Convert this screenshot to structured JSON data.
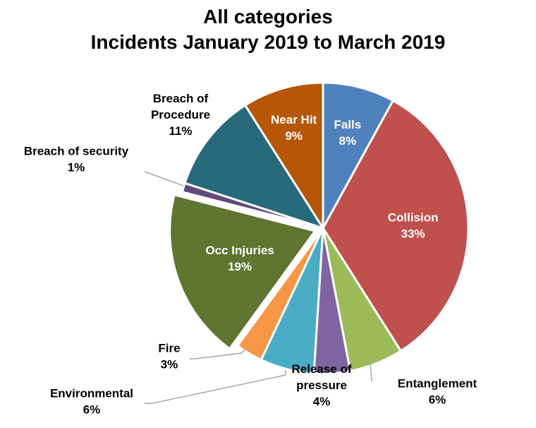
{
  "chart_data": {
    "type": "pie",
    "title": [
      "All categories",
      "Incidents January 2019 to March 2019"
    ],
    "slices": [
      {
        "name": "Falls",
        "label": "Falls",
        "percent_label": "8%",
        "value": 8,
        "color": "#4F81BD",
        "label_color": "#ffffff"
      },
      {
        "name": "Collision",
        "label": "Collision",
        "percent_label": "33%",
        "value": 33,
        "color": "#C0504D",
        "label_color": "#ffffff"
      },
      {
        "name": "Entanglement",
        "label": "Entanglement",
        "percent_label": "6%",
        "value": 6,
        "color": "#9BBB59",
        "label_color": "#000000"
      },
      {
        "name": "Release of pressure",
        "label": "Release of pressure",
        "percent_label": "4%",
        "value": 4,
        "color": "#8064A2",
        "label_color": "#000000"
      },
      {
        "name": "Environmental",
        "label": "Environmental",
        "percent_label": "6%",
        "value": 6,
        "color": "#4BACC6",
        "label_color": "#000000"
      },
      {
        "name": "Fire",
        "label": "Fire",
        "percent_label": "3%",
        "value": 3,
        "color": "#F79646",
        "label_color": "#000000"
      },
      {
        "name": "Occ Injuries",
        "label": "Occ Injuries",
        "percent_label": "19%",
        "value": 19,
        "color": "#5F7530",
        "label_color": "#ffffff"
      },
      {
        "name": "Breach of security",
        "label": "Breach of security",
        "percent_label": "1%",
        "value": 1,
        "color": "#604A7B",
        "label_color": "#000000"
      },
      {
        "name": "Breach of Procedure",
        "label": "Breach of Procedure",
        "percent_label": "11%",
        "value": 11,
        "color": "#276A7C",
        "label_color": "#000000"
      },
      {
        "name": "Near Hit",
        "label": "Near Hit",
        "percent_label": "9%",
        "value": 9,
        "color": "#B65708",
        "label_color": "#ffffff"
      }
    ]
  }
}
